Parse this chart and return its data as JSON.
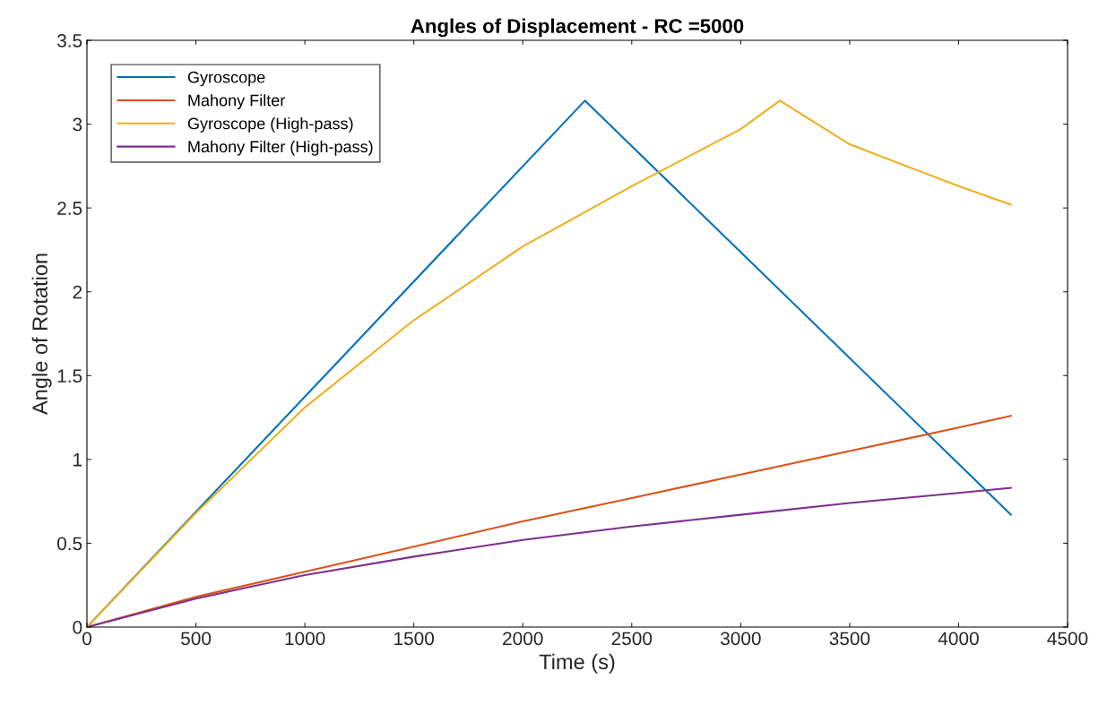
{
  "chart_data": {
    "type": "line",
    "title": "Angles of Displacement - RC =5000",
    "xlabel": "Time (s)",
    "ylabel": "Angle of Rotation",
    "xlim": [
      0,
      4500
    ],
    "xticks": [
      0,
      500,
      1000,
      1500,
      2000,
      2500,
      3000,
      3500,
      4000,
      4500
    ],
    "ylim": [
      0,
      3.5
    ],
    "yticks": [
      0,
      0.5,
      1,
      1.5,
      2,
      2.5,
      3,
      3.5
    ],
    "grid": false,
    "legend": "top left",
    "series": [
      {
        "name": "Gyroscope",
        "color": "#0072bd",
        "x": [
          0,
          2285,
          4240
        ],
        "values": [
          0,
          3.14,
          0.67
        ]
      },
      {
        "name": "Mahony Filter",
        "color": "#d95319",
        "x": [
          0,
          500,
          1000,
          1500,
          2000,
          2500,
          3000,
          3500,
          4000,
          4240
        ],
        "values": [
          0,
          0.18,
          0.33,
          0.48,
          0.63,
          0.77,
          0.91,
          1.05,
          1.19,
          1.26
        ]
      },
      {
        "name": "Gyroscope (High-pass)",
        "color": "#edb120",
        "x": [
          0,
          500,
          1000,
          1500,
          2000,
          2500,
          3000,
          3180,
          3500,
          4000,
          4240
        ],
        "values": [
          0,
          0.68,
          1.31,
          1.83,
          2.27,
          2.63,
          2.97,
          3.14,
          2.88,
          2.63,
          2.52
        ]
      },
      {
        "name": "Mahony Filter (High-pass)",
        "color": "#7e2f8e",
        "x": [
          0,
          500,
          1000,
          1500,
          2000,
          2500,
          3000,
          3500,
          4000,
          4240
        ],
        "values": [
          0,
          0.17,
          0.31,
          0.42,
          0.52,
          0.6,
          0.67,
          0.74,
          0.8,
          0.83
        ]
      }
    ]
  }
}
